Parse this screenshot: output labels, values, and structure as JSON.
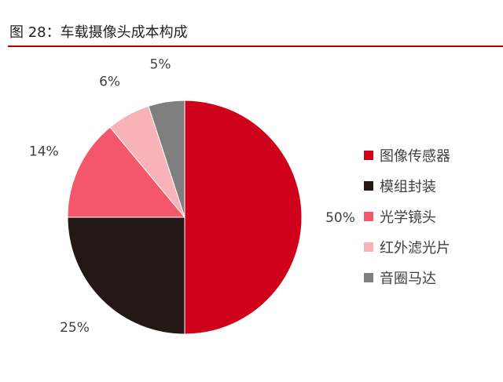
{
  "figure_title": "图 28：车载摄像头成本构成",
  "colors": {
    "title_rule": "#b30000",
    "slice_border": "#ffffff"
  },
  "chart_data": {
    "type": "pie",
    "title": "图 28：车载摄像头成本构成",
    "start_angle_deg": 0,
    "direction": "clockwise",
    "legend_placement": "right",
    "slices": [
      {
        "label": "图像传感器",
        "value": 50,
        "value_label": "50%",
        "color": "#d0021b"
      },
      {
        "label": "模组封装",
        "value": 25,
        "value_label": "25%",
        "color": "#231815"
      },
      {
        "label": "光学镜头",
        "value": 14,
        "value_label": "14%",
        "color": "#f4566b"
      },
      {
        "label": "红外滤光片",
        "value": 6,
        "value_label": "6%",
        "color": "#f7b3b8"
      },
      {
        "label": "音圈马达",
        "value": 5,
        "value_label": "5%",
        "color": "#7f7f7f"
      }
    ]
  }
}
